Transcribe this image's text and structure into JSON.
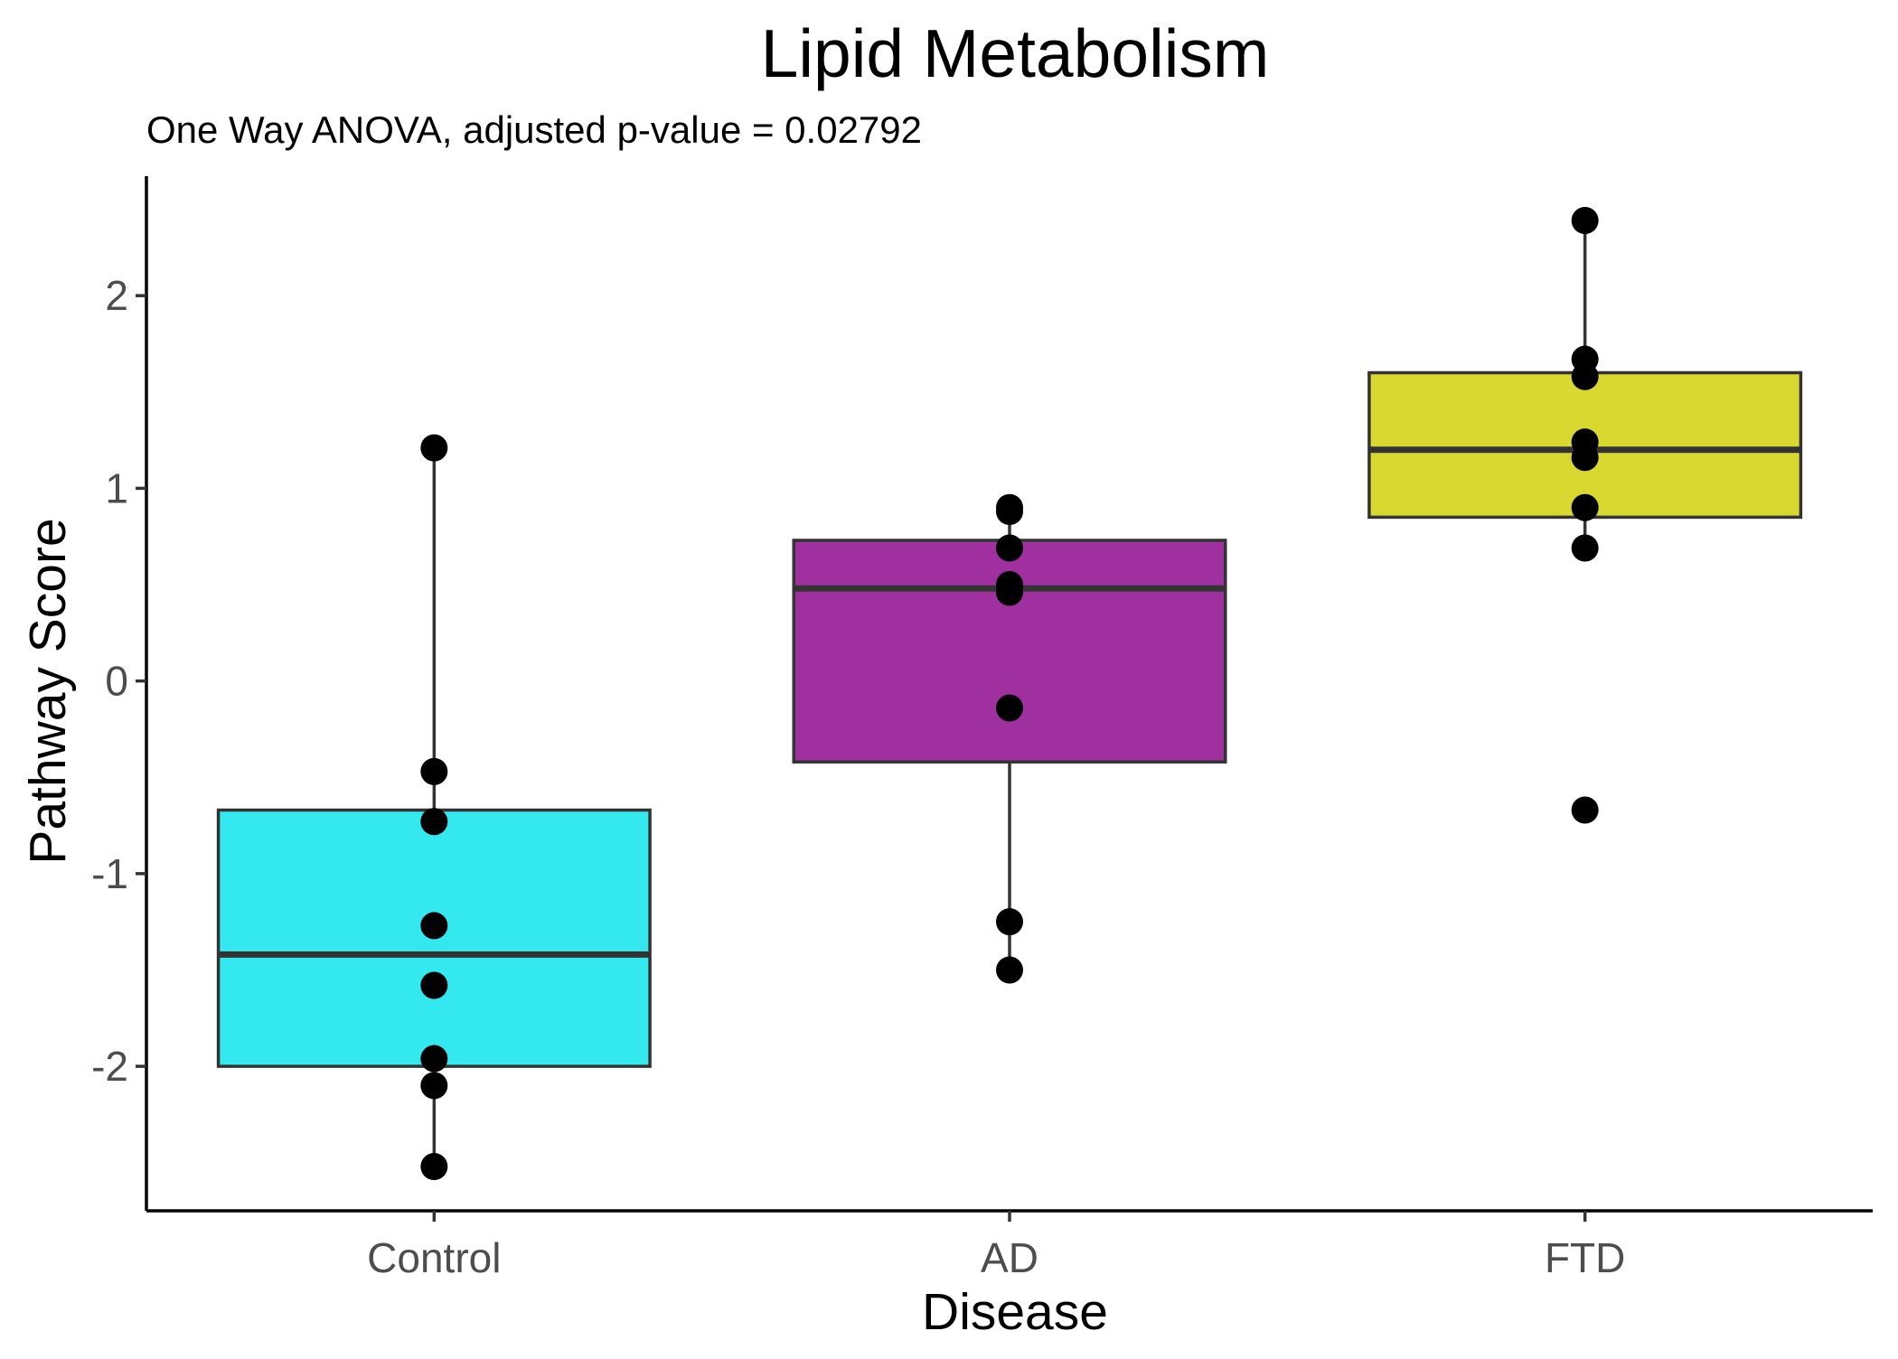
{
  "chart_data": {
    "type": "boxplot",
    "title": "Lipid Metabolism",
    "subtitle": "One Way ANOVA, adjusted p-value = 0.02792",
    "xlabel": "Disease",
    "ylabel": "Pathway Score",
    "ylim": [
      -2.75,
      2.62
    ],
    "y_ticks": [
      -2,
      -1,
      0,
      1,
      2
    ],
    "y_tick_labels": [
      "-2",
      "-1",
      "0",
      "1",
      "2"
    ],
    "grid": false,
    "legend": "none",
    "categories": [
      "Control",
      "AD",
      "FTD"
    ],
    "groups": [
      {
        "name": "Control",
        "color": "#33e9ef",
        "box": {
          "whisker_low": -2.52,
          "q1": -2.0,
          "median": -1.42,
          "q3": -0.67,
          "whisker_high": 1.21
        },
        "points": [
          1.21,
          -0.47,
          -0.73,
          -1.27,
          -1.58,
          -1.96,
          -2.1,
          -2.52
        ]
      },
      {
        "name": "AD",
        "color": "#a0309f",
        "box": {
          "whisker_low": -1.5,
          "q1": -0.42,
          "median": 0.48,
          "q3": 0.73,
          "whisker_high": 0.9
        },
        "points": [
          0.9,
          0.88,
          0.69,
          0.5,
          0.46,
          -0.14,
          -1.25,
          -1.5
        ]
      },
      {
        "name": "FTD",
        "color": "#d8d830",
        "box": {
          "whisker_low": 0.69,
          "q1": 0.85,
          "median": 1.2,
          "q3": 1.6,
          "whisker_high": 2.39
        },
        "points": [
          2.39,
          1.67,
          1.58,
          1.24,
          1.16,
          0.9,
          0.69,
          -0.67
        ]
      }
    ]
  }
}
